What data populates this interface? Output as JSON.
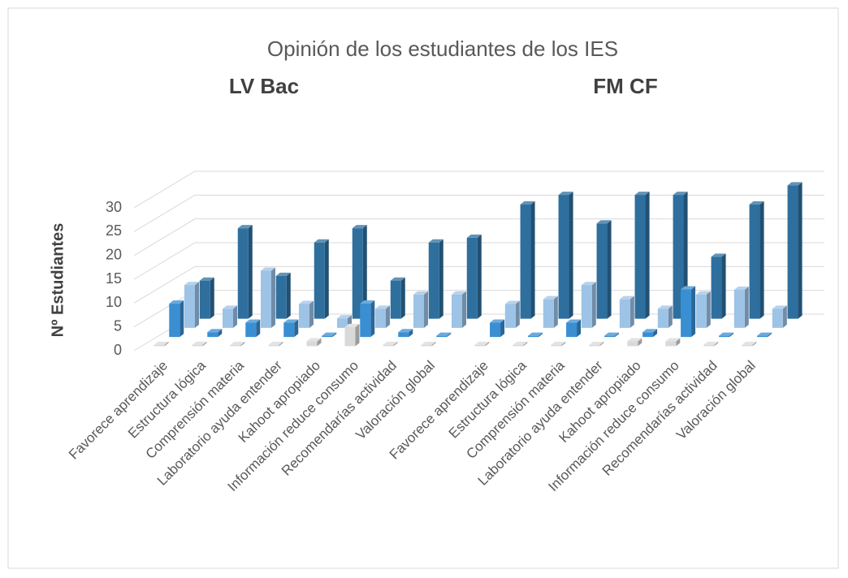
{
  "chart_data": {
    "type": "bar3d",
    "title": "Opinión de los estudiantes de los IES",
    "groups": [
      "LV Bac",
      "FM CF"
    ],
    "ylabel": "Nº Estudiantes",
    "categories": [
      "Favorece aprendizaje",
      "Estructura lógica",
      "Comprensión materia",
      "Laboratorio ayuda entender",
      "Kahoot apropiado",
      "Información reduce consumo",
      "Recomendarías actividad",
      "Valoración global",
      "Favorece aprendizaje",
      "Estructura lógica",
      "Comprensión materia",
      "Laboratorio ayuda entender",
      "Kahoot apropiado",
      "Información reduce consumo",
      "Recomendarías actividad",
      "Valoración global"
    ],
    "series": [
      {
        "color": "#d9d9d9",
        "values": [
          0,
          0,
          0,
          0,
          1,
          4,
          0,
          0,
          0,
          0,
          0,
          0,
          1,
          1,
          0,
          0
        ]
      },
      {
        "color": "#3a8fd3",
        "values": [
          7,
          1,
          3,
          3,
          0,
          7,
          1,
          0,
          3,
          0,
          3,
          0,
          1,
          10,
          0,
          0
        ]
      },
      {
        "color": "#9dc3e6",
        "values": [
          9,
          4,
          12,
          5,
          2,
          4,
          7,
          7,
          5,
          6,
          9,
          6,
          4,
          7,
          8,
          4
        ]
      },
      {
        "color": "#2e6f9e",
        "values": [
          8,
          19,
          9,
          16,
          19,
          8,
          16,
          17,
          24,
          26,
          20,
          26,
          26,
          13,
          24,
          28
        ]
      }
    ],
    "ylim": [
      0,
      30
    ],
    "yticks": [
      0,
      5,
      10,
      15,
      20,
      25,
      30
    ],
    "grid": true
  }
}
